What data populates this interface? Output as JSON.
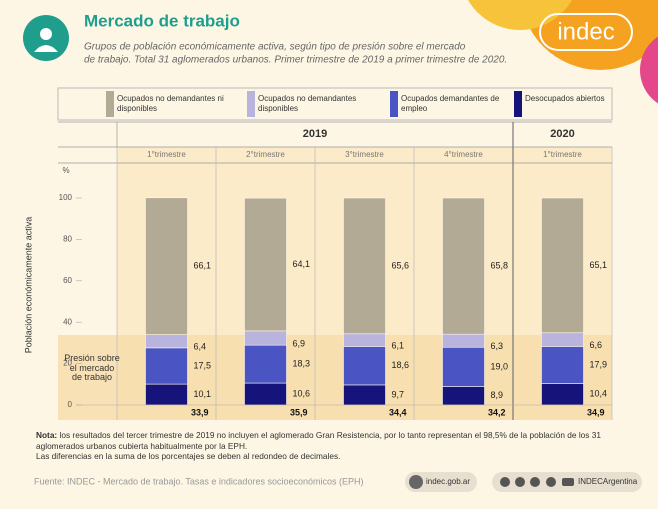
{
  "header": {
    "title": "Mercado de trabajo",
    "subtitle": [
      "Grupos de población económicamente activa, según tipo de presión sobre el mercado",
      "de trabajo. Total 31 aglomerados urbanos. Primer trimestre de 2019 a primer trimestre de 2020."
    ],
    "logo": "indec"
  },
  "chart_data": {
    "type": "stacked_bar",
    "years": [
      "2019",
      "2020"
    ],
    "categories": [
      "1°trimestre",
      "2°trimestre",
      "3°trimestre",
      "4°trimestre",
      "1°trimestre"
    ],
    "y_unit": "%",
    "y_label": "Población económicamente activa",
    "ylim": [
      0,
      100
    ],
    "yticks": [
      0,
      20,
      40,
      60,
      80,
      100
    ],
    "annotation": "Presión sobre el mercado de trabajo",
    "series": [
      {
        "name": "Ocupados no demandantes ni disponibles",
        "color": "#b3aa96",
        "values": [
          66.1,
          64.1,
          65.6,
          65.8,
          65.1
        ],
        "value_labels": [
          "66,1",
          "64,1",
          "65,6",
          "65,8",
          "65,1"
        ]
      },
      {
        "name": "Ocupados no demandantes disponibles",
        "color": "#b9b4de",
        "values": [
          6.4,
          6.9,
          6.1,
          6.3,
          6.6
        ],
        "value_labels": [
          "6,4",
          "6,9",
          "6,1",
          "6,3",
          "6,6"
        ]
      },
      {
        "name": "Ocupados demandantes de empleo",
        "color": "#4a54c3",
        "values": [
          17.5,
          18.3,
          18.6,
          19.0,
          17.9
        ],
        "value_labels": [
          "17,5",
          "18,3",
          "18,6",
          "19,0",
          "17,9"
        ]
      },
      {
        "name": "Desocupados abiertos",
        "color": "#16137a",
        "values": [
          10.1,
          10.6,
          9.7,
          8.9,
          10.4
        ],
        "value_labels": [
          "10,1",
          "10,6",
          "9,7",
          "8,9",
          "10,4"
        ]
      }
    ],
    "totals": {
      "values": [
        33.9,
        35.9,
        34.4,
        34.2,
        34.9
      ],
      "value_labels": [
        "33,9",
        "35,9",
        "34,4",
        "34,2",
        "34,9"
      ]
    }
  },
  "notes": {
    "label": "Nota:",
    "text": "los resultados del tercer trimestre de 2019 no incluyen el aglomerado Gran Resistencia, por lo tanto representan el 98,5% de la población de los 31 aglomerados urbanos cubierta habitualmente por la EPH.",
    "text2": "Las diferencias en la suma de los porcentajes se deben al redondeo de decimales."
  },
  "footer": {
    "source": "Fuente: INDEC - Mercado de trabajo. Tasas e indicadores socioeconómicos (EPH)",
    "website": "indec.gob.ar",
    "handle": "INDECArgentina"
  }
}
